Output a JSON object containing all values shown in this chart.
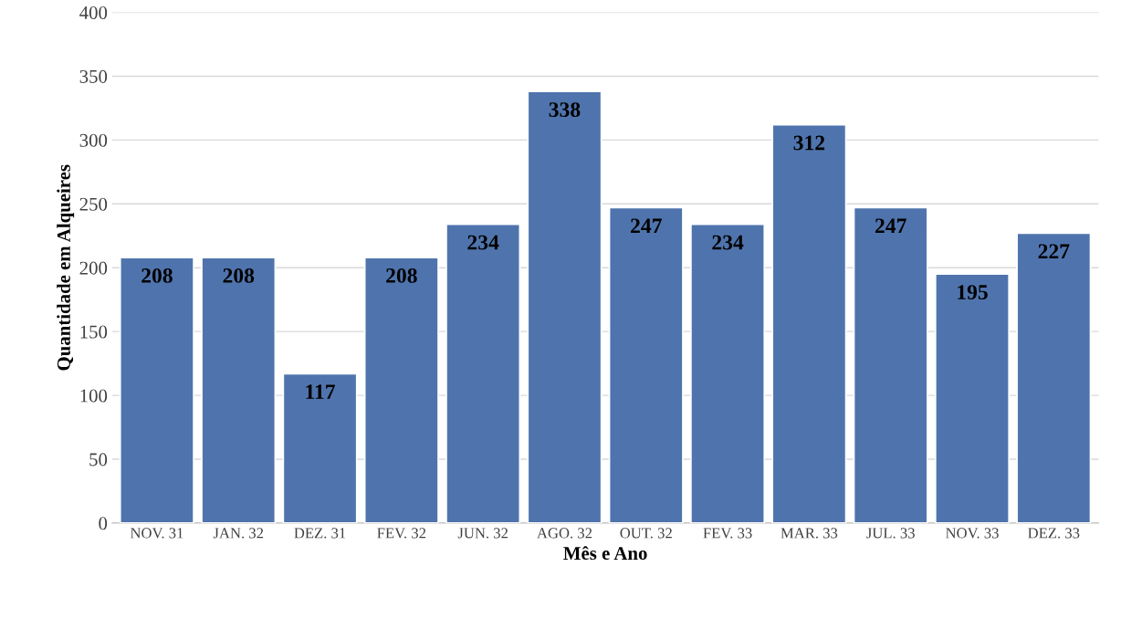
{
  "chart_data": {
    "type": "bar",
    "xlabel": "Mês e Ano",
    "ylabel": "Quantidade em Alqueires",
    "categories": [
      "NOV. 31",
      "JAN. 32",
      "DEZ. 31",
      "FEV. 32",
      "JUN. 32",
      "AGO. 32",
      "OUT. 32",
      "FEV. 33",
      "MAR. 33",
      "JUL. 33",
      "NOV. 33",
      "DEZ. 33"
    ],
    "values": [
      208,
      208,
      117,
      208,
      234,
      338,
      247,
      234,
      312,
      247,
      195,
      227
    ],
    "color": "#4f74ad",
    "ylim": [
      0,
      400
    ],
    "yticks": [
      0,
      50,
      100,
      150,
      200,
      250,
      300,
      350,
      400
    ],
    "grid": "y",
    "data_labels": true
  }
}
